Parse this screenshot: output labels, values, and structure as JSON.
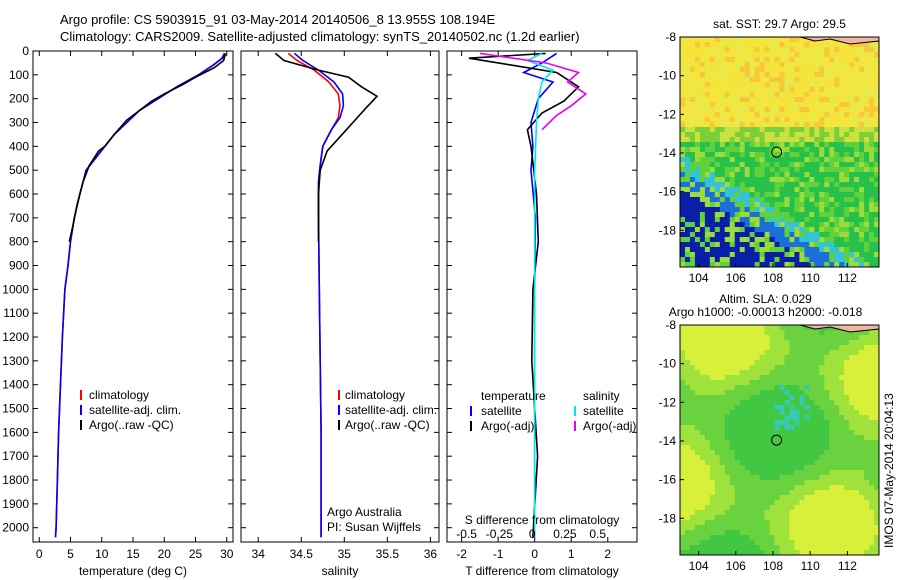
{
  "header": {
    "line1": "Argo profile: CS 5903915_91 03-May-2014 20140506_8 13.955S 108.194E",
    "line2": "Climatology: CARS2009. Satellite-adjusted climatology: synTS_20140502.nc (1.2d earlier)"
  },
  "colors": {
    "climatology": "#ff0000",
    "satellite": "#0000ff",
    "argo": "#000000",
    "satellite_salinity": "#00e5ee",
    "argo_adj_salinity": "#ee00ee"
  },
  "chart_data": [
    {
      "id": "temperature",
      "type": "line",
      "xlabel": "temperature (deg C)",
      "ylabel": "",
      "xlim": [
        -1,
        31
      ],
      "ylim": [
        2060,
        0
      ],
      "xticks": [
        0,
        5,
        10,
        15,
        20,
        25,
        30
      ],
      "yticks": [
        0,
        100,
        200,
        300,
        400,
        500,
        600,
        700,
        800,
        900,
        1000,
        1100,
        1200,
        1300,
        1400,
        1500,
        1600,
        1700,
        1800,
        1900,
        2000
      ],
      "legend": [
        "climatology",
        "satellite-adj. clim.",
        "Argo(..raw -QC)"
      ],
      "legend_position": "lower-left",
      "series": [
        {
          "name": "climatology",
          "color": "#ff0000",
          "x": [
            29.6,
            29.2,
            27.8,
            25.5,
            22,
            19,
            16,
            14,
            12,
            10.5,
            9,
            7.5,
            6.5,
            5.6,
            5,
            4.6,
            4.1,
            3.7,
            3.4,
            3.1,
            2.9,
            2.7,
            2.6
          ],
          "y": [
            10,
            30,
            60,
            100,
            150,
            200,
            250,
            300,
            350,
            400,
            450,
            500,
            600,
            700,
            800,
            900,
            1000,
            1200,
            1400,
            1600,
            1800,
            2000,
            2040
          ]
        },
        {
          "name": "satellite-adj. clim.",
          "color": "#0000ff",
          "x": [
            29.7,
            29.3,
            27.8,
            25.5,
            22,
            19,
            16,
            14,
            12,
            10.5,
            9,
            7.5,
            6.5,
            5.6,
            5,
            4.6,
            4.1,
            3.7,
            3.4,
            3.1,
            2.9,
            2.7,
            2.6
          ],
          "y": [
            10,
            30,
            60,
            100,
            150,
            200,
            250,
            300,
            350,
            400,
            450,
            500,
            600,
            700,
            800,
            900,
            1000,
            1200,
            1400,
            1600,
            1800,
            2000,
            2040
          ]
        },
        {
          "name": "Argo(..raw -QC)",
          "color": "#000000",
          "x": [
            29.8,
            29.5,
            28,
            25,
            23,
            20,
            18,
            16,
            14,
            12,
            10.5,
            9.5,
            8,
            7,
            6,
            5.5,
            4.8
          ],
          "y": [
            10,
            40,
            70,
            110,
            140,
            180,
            210,
            250,
            290,
            350,
            400,
            420,
            480,
            550,
            650,
            720,
            800
          ]
        }
      ]
    },
    {
      "id": "salinity",
      "type": "line",
      "xlabel": "salinity",
      "ylabel": "",
      "xlim": [
        33.8,
        36.1
      ],
      "ylim": [
        2060,
        0
      ],
      "xticks": [
        34,
        34.5,
        35,
        35.5,
        36
      ],
      "xtick_labels": [
        "34",
        "34.5",
        "35",
        "35.5",
        "36"
      ],
      "legend": [
        "climatology",
        "satellite-adj. clim.",
        "Argo(..raw -QC)"
      ],
      "legend_position": "lower-right",
      "annotations": [
        "Argo Australia",
        "PI: Susan Wijffels"
      ],
      "series": [
        {
          "name": "climatology",
          "color": "#ff0000",
          "x": [
            34.35,
            34.45,
            34.65,
            34.82,
            34.93,
            34.95,
            34.93,
            34.85,
            34.75,
            34.72,
            34.7,
            34.7,
            34.71,
            34.72,
            34.73,
            34.73,
            34.73
          ],
          "y": [
            10,
            40,
            80,
            130,
            180,
            230,
            280,
            330,
            400,
            480,
            550,
            700,
            1000,
            1300,
            1600,
            1900,
            2040
          ]
        },
        {
          "name": "satellite-adj. clim.",
          "color": "#0000ff",
          "x": [
            34.42,
            34.52,
            34.7,
            34.88,
            34.98,
            34.99,
            34.95,
            34.85,
            34.75,
            34.72,
            34.7,
            34.7,
            34.71,
            34.72,
            34.73,
            34.73,
            34.73
          ],
          "y": [
            10,
            40,
            80,
            130,
            180,
            230,
            280,
            330,
            400,
            480,
            550,
            700,
            1000,
            1300,
            1600,
            1900,
            2040
          ]
        },
        {
          "name": "Argo(..raw -QC)",
          "color": "#000000",
          "x": [
            34.2,
            34.3,
            34.7,
            35.05,
            35.2,
            35.38,
            35.25,
            35.1,
            34.95,
            34.8,
            34.72,
            34.7,
            34.7,
            34.7
          ],
          "y": [
            10,
            40,
            80,
            110,
            150,
            190,
            240,
            300,
            360,
            420,
            500,
            600,
            700,
            800
          ]
        }
      ]
    },
    {
      "id": "difference",
      "type": "line",
      "xlabel": "T difference from climatology",
      "x2label": "S difference from climatology",
      "ylabel": "",
      "xlim": [
        -2.4,
        2.8
      ],
      "ylim": [
        2060,
        0
      ],
      "xticks": [
        -2,
        -1,
        0,
        1,
        2
      ],
      "x2ticks": [
        -0.5,
        -0.25,
        0,
        0.25,
        0.5
      ],
      "x2tick_labels": [
        "-0.5",
        "-0.25",
        "0",
        "0.25",
        "0.5"
      ],
      "legend": [
        "temperature",
        "satellite",
        "Argo(-adj)",
        "salinity",
        "satellite",
        "Argo(-adj)"
      ],
      "legend_position": "lower",
      "series": [
        {
          "name": "satellite",
          "group": "temperature",
          "color": "#0000ff",
          "x": [
            0.6,
            0.2,
            -0.3,
            0.5,
            0.1,
            -0.1,
            -0.05,
            -0.1,
            0.02,
            0,
            0
          ],
          "y": [
            10,
            50,
            90,
            130,
            200,
            300,
            400,
            500,
            700,
            1000,
            2040
          ]
        },
        {
          "name": "Argo(-adj)",
          "group": "temperature",
          "color": "#000000",
          "x": [
            0.3,
            -1.8,
            -0.6,
            0.6,
            1.2,
            0.8,
            0.2,
            -0.2,
            -0.1,
            0.05,
            0.1,
            -0.05,
            -0.08,
            0.08,
            -0.05
          ],
          "y": [
            10,
            30,
            60,
            90,
            150,
            210,
            260,
            330,
            400,
            600,
            800,
            1000,
            1300,
            1700,
            2040
          ]
        },
        {
          "name": "satellite",
          "group": "salinity",
          "color": "#00e5ee",
          "x": [
            0.2,
            -0.2,
            0.5,
            0.2,
            0.1,
            0.05,
            0,
            0,
            0
          ],
          "y": [
            10,
            40,
            80,
            130,
            200,
            300,
            500,
            1000,
            2040
          ]
        },
        {
          "name": "Argo(-adj)",
          "group": "salinity",
          "color": "#ee00ee",
          "x": [
            -1.5,
            0.3,
            1.2,
            0.9,
            1.4,
            1.0,
            0.6,
            0.2
          ],
          "y": [
            10,
            50,
            90,
            130,
            180,
            230,
            270,
            330
          ]
        }
      ]
    },
    {
      "id": "sst_map",
      "type": "heatmap",
      "title": "sat. SST: 29.7 Argo: 29.5",
      "xlim": [
        103,
        113.7
      ],
      "ylim": [
        -19.9,
        -8
      ],
      "xticks": [
        104,
        106,
        108,
        110,
        112
      ],
      "yticks": [
        -8,
        -10,
        -12,
        -14,
        -16,
        -18
      ],
      "marker": {
        "lon": 108.194,
        "lat": -13.955
      }
    },
    {
      "id": "sla_map",
      "type": "heatmap",
      "title": "Altim. SLA: 0.029",
      "subtitle": "Argo h1000: -0.00013 h2000: -0.018",
      "xlim": [
        103,
        113.7
      ],
      "ylim": [
        -19.9,
        -8
      ],
      "xticks": [
        104,
        106,
        108,
        110,
        112
      ],
      "yticks": [
        -8,
        -10,
        -12,
        -14,
        -16,
        -18
      ],
      "marker": {
        "lon": 108.194,
        "lat": -13.955
      }
    }
  ],
  "footer": {
    "stamp": "IMOS 07-May-2014 20:04:13"
  }
}
